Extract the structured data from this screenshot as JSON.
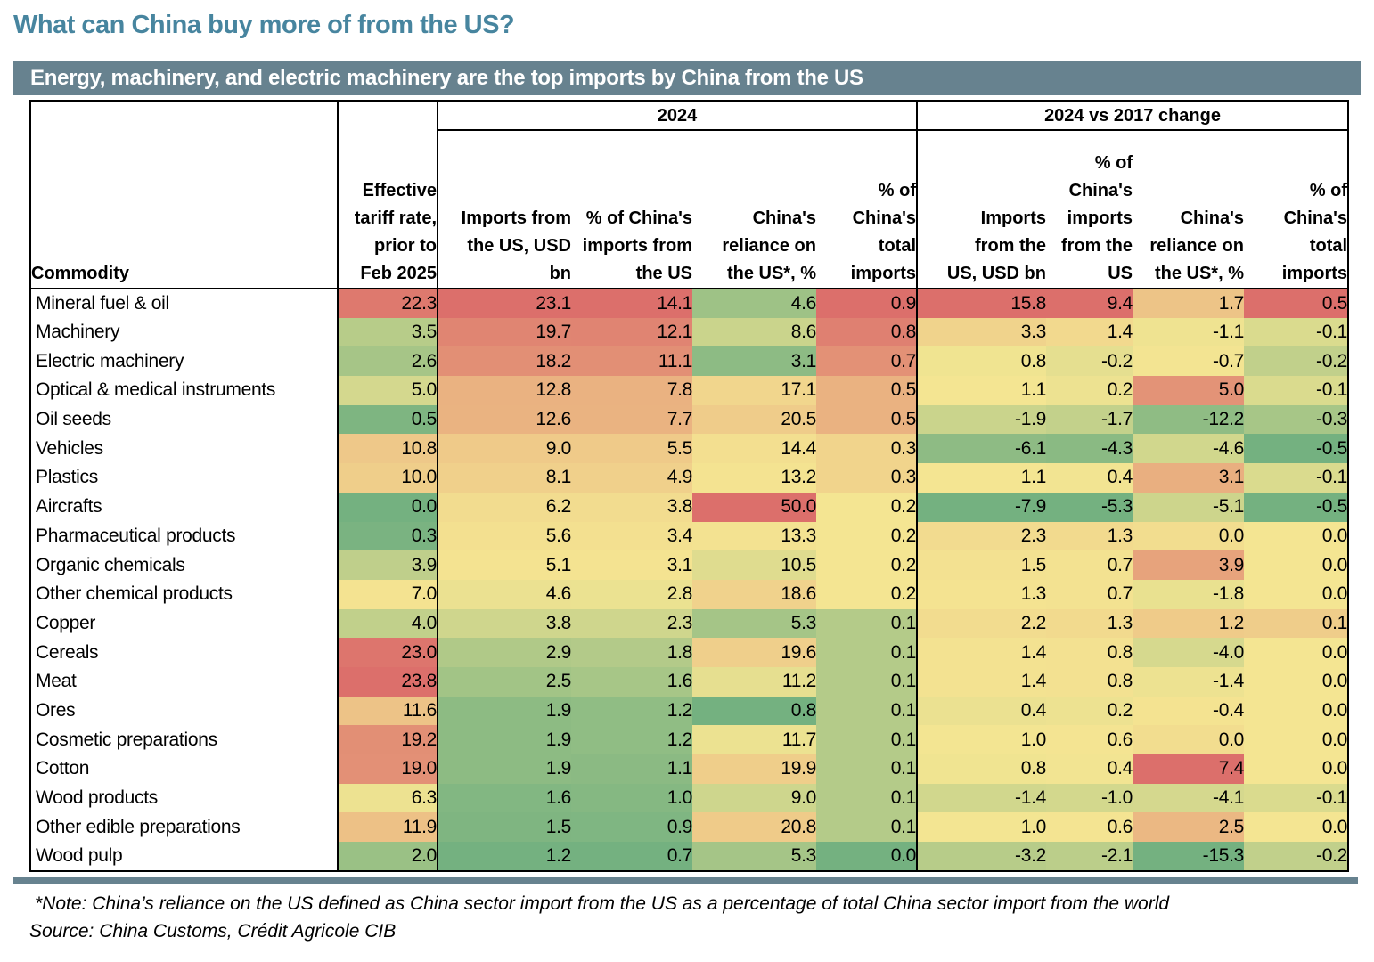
{
  "page_title": "What can China buy more of from the US?",
  "banner": {
    "text": "Energy, machinery, and electric machinery are the top imports by China from the US"
  },
  "table": {
    "corner_header": "Commodity",
    "tariff_header": "Effective\ntariff rate,\nprior to\nFeb 2025",
    "groups": [
      {
        "label": "2024",
        "columns": [
          "Imports from\nthe US, USD\nbn",
          "% of China's\nimports from\nthe US",
          "China's\nreliance on\nthe US*, %",
          "% of\nChina's\ntotal\nimports"
        ]
      },
      {
        "label": "2024 vs 2017 change",
        "columns": [
          "Imports\nfrom the\nUS, USD bn",
          "% of\nChina's\nimports\nfrom the\nUS",
          "China's\nreliance on\nthe US*, %",
          "% of\nChina's\ntotal\nimports"
        ]
      }
    ],
    "rows": [
      {
        "commodity": "Mineral fuel & oil",
        "tariff": 22.3,
        "y2024": [
          23.1,
          14.1,
          4.6,
          0.9
        ],
        "change": [
          15.8,
          9.4,
          1.7,
          0.5
        ]
      },
      {
        "commodity": "Machinery",
        "tariff": 3.5,
        "y2024": [
          19.7,
          12.1,
          8.6,
          0.8
        ],
        "change": [
          3.3,
          1.4,
          -1.1,
          -0.1
        ]
      },
      {
        "commodity": "Electric machinery",
        "tariff": 2.6,
        "y2024": [
          18.2,
          11.1,
          3.1,
          0.7
        ],
        "change": [
          0.8,
          -0.2,
          -0.7,
          -0.2
        ]
      },
      {
        "commodity": "Optical & medical instruments",
        "tariff": 5.0,
        "y2024": [
          12.8,
          7.8,
          17.1,
          0.5
        ],
        "change": [
          1.1,
          0.2,
          5.0,
          -0.1
        ]
      },
      {
        "commodity": "Oil seeds",
        "tariff": 0.5,
        "y2024": [
          12.6,
          7.7,
          20.5,
          0.5
        ],
        "change": [
          -1.9,
          -1.7,
          -12.2,
          -0.3
        ]
      },
      {
        "commodity": "Vehicles",
        "tariff": 10.8,
        "y2024": [
          9.0,
          5.5,
          14.4,
          0.3
        ],
        "change": [
          -6.1,
          -4.3,
          -4.6,
          -0.5
        ]
      },
      {
        "commodity": "Plastics",
        "tariff": 10.0,
        "y2024": [
          8.1,
          4.9,
          13.2,
          0.3
        ],
        "change": [
          1.1,
          0.4,
          3.1,
          -0.1
        ]
      },
      {
        "commodity": "Aircrafts",
        "tariff": 0.0,
        "y2024": [
          6.2,
          3.8,
          50.0,
          0.2
        ],
        "change": [
          -7.9,
          -5.3,
          -5.1,
          -0.5
        ]
      },
      {
        "commodity": "Pharmaceutical products",
        "tariff": 0.3,
        "y2024": [
          5.6,
          3.4,
          13.3,
          0.2
        ],
        "change": [
          2.3,
          1.3,
          0.0,
          0.0
        ]
      },
      {
        "commodity": "Organic chemicals",
        "tariff": 3.9,
        "y2024": [
          5.1,
          3.1,
          10.5,
          0.2
        ],
        "change": [
          1.5,
          0.7,
          3.9,
          0.0
        ]
      },
      {
        "commodity": "Other chemical products",
        "tariff": 7.0,
        "y2024": [
          4.6,
          2.8,
          18.6,
          0.2
        ],
        "change": [
          1.3,
          0.7,
          -1.8,
          0.0
        ]
      },
      {
        "commodity": "Copper",
        "tariff": 4.0,
        "y2024": [
          3.8,
          2.3,
          5.3,
          0.1
        ],
        "change": [
          2.2,
          1.3,
          1.2,
          0.1
        ]
      },
      {
        "commodity": "Cereals",
        "tariff": 23.0,
        "y2024": [
          2.9,
          1.8,
          19.6,
          0.1
        ],
        "change": [
          1.4,
          0.8,
          -4.0,
          0.0
        ]
      },
      {
        "commodity": "Meat",
        "tariff": 23.8,
        "y2024": [
          2.5,
          1.6,
          11.2,
          0.1
        ],
        "change": [
          1.4,
          0.8,
          -1.4,
          0.0
        ]
      },
      {
        "commodity": "Ores",
        "tariff": 11.6,
        "y2024": [
          1.9,
          1.2,
          0.8,
          0.1
        ],
        "change": [
          0.4,
          0.2,
          -0.4,
          0.0
        ]
      },
      {
        "commodity": "Cosmetic preparations",
        "tariff": 19.2,
        "y2024": [
          1.9,
          1.2,
          11.7,
          0.1
        ],
        "change": [
          1.0,
          0.6,
          0.0,
          0.0
        ]
      },
      {
        "commodity": "Cotton",
        "tariff": 19.0,
        "y2024": [
          1.9,
          1.1,
          19.9,
          0.1
        ],
        "change": [
          0.8,
          0.4,
          7.4,
          0.0
        ]
      },
      {
        "commodity": "Wood products",
        "tariff": 6.3,
        "y2024": [
          1.6,
          1.0,
          9.0,
          0.1
        ],
        "change": [
          -1.4,
          -1.0,
          -4.1,
          -0.1
        ]
      },
      {
        "commodity": "Other edible preparations",
        "tariff": 11.9,
        "y2024": [
          1.5,
          0.9,
          20.8,
          0.1
        ],
        "change": [
          1.0,
          0.6,
          2.5,
          0.0
        ]
      },
      {
        "commodity": "Wood pulp",
        "tariff": 2.0,
        "y2024": [
          1.2,
          0.7,
          5.3,
          0.0
        ],
        "change": [
          -3.2,
          -2.1,
          -15.3,
          -0.2
        ]
      }
    ]
  },
  "footer": {
    "note": "*Note: China’s reliance on the US defined as China sector import from the US as a percentage of total China sector import from the world",
    "source": "Source: China Customs, Crédit Agricole CIB"
  },
  "colors": {
    "title": "#47859F",
    "banner_bg": "#67828F",
    "scale_min_green": "#74B180",
    "scale_mid_yellow": "#F4E592",
    "scale_max_red": "#DC6F6B"
  }
}
